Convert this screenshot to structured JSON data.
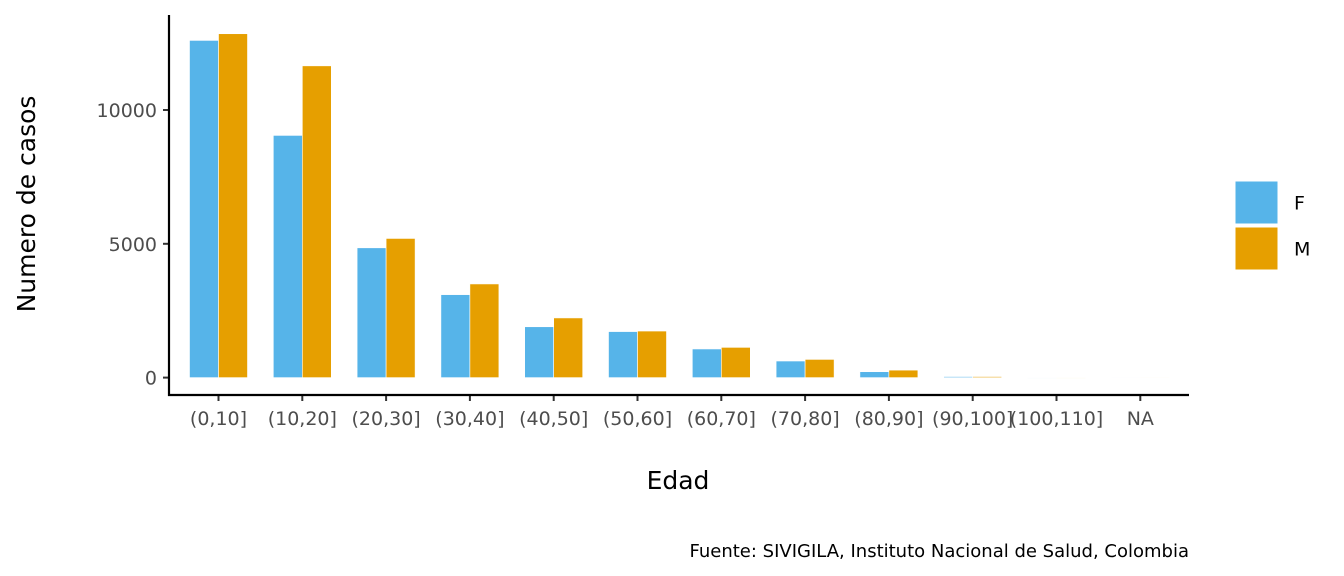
{
  "chart_data": {
    "type": "bar",
    "categories": [
      "(0,10]",
      "(10,20]",
      "(20,30]",
      "(30,40]",
      "(40,50]",
      "(50,60]",
      "(60,70]",
      "(70,80]",
      "(80,90]",
      "(90,100]",
      "(100,110]",
      "NA"
    ],
    "series": [
      {
        "name": "F",
        "color": "#56B4E9",
        "values": [
          12600,
          9050,
          4850,
          3100,
          1900,
          1720,
          1070,
          620,
          220,
          40,
          5,
          20
        ]
      },
      {
        "name": "M",
        "color": "#E69F00",
        "values": [
          12850,
          11650,
          5200,
          3500,
          2230,
          1740,
          1130,
          680,
          280,
          40,
          5,
          20
        ]
      }
    ],
    "xlabel": "Edad",
    "ylabel": "Numero de casos",
    "ylim": [
      -650,
      13550
    ],
    "yticks": [
      0,
      5000,
      10000
    ],
    "ytick_labels": [
      "0",
      "5000",
      "10000"
    ],
    "legend_position": "right",
    "grid": false,
    "caption": "Fuente: SIVIGILA, Instituto Nacional de Salud, Colombia"
  }
}
